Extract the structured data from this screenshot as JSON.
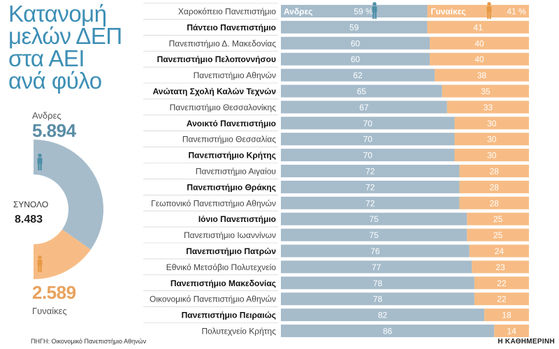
{
  "title_lines": [
    "Κατανομή",
    "μελών ΔΕΠ",
    "στα ΑΕΙ",
    "ανά φύλο"
  ],
  "summary": {
    "men_label": "Ανδρες",
    "men_total": "5.894",
    "total_label": "ΣΥΝΟΛΟ",
    "total_value": "8.483",
    "women_total": "2.589",
    "women_label": "Γυναίκες"
  },
  "source": "ΠΗΓΗ: Οικονομικό Πανεπιστήμιο Αθηνών",
  "brand": "Η ΚΑΘΗΜΕΡΙΝΗ",
  "colors": {
    "men": "#a6bccb",
    "women": "#f7bc85",
    "title": "#3d8fb5",
    "men_icon": "#4d8fa7",
    "women_icon": "#e79a45"
  },
  "chart_data": {
    "type": "bar",
    "orientation": "horizontal",
    "stacked": true,
    "unit": "%",
    "series_header": {
      "men": "Ανδρες",
      "women": "Γυναίκες"
    },
    "categories": [
      "Χαροκόπειο Πανεπιστήμιο",
      "Πάντειο Πανεπιστήμιο",
      "Πανεπιστήμιο Δ. Μακεδονίας",
      "Πανεπιστήμιο Πελοποννήσου",
      "Πανεπιστήμιο Αθηνών",
      "Ανώτατη Σχολή Καλών Τεχνών",
      "Πανεπιστήμιο Θεσσαλονίκης",
      "Ανοικτό Πανεπιστήμιο",
      "Πανεπιστήμιο Θεσσαλίας",
      "Πανεπιστήμιο Κρήτης",
      "Πανεπιστήμιο Αιγαίου",
      "Πανεπιστήμιο Θράκης",
      "Γεωπονικό Πανεπιστήμιο Αθηνών",
      "Ιόνιο Πανεπιστήμιο",
      "Πανεπιστήμιο Ιωαννίνων",
      "Πανεπιστήμιο Πατρών",
      "Εθνικό Μετσόβιο Πολυτεχνείο",
      "Πανεπιστήμιο Μακεδονίας",
      "Οικονομικό Πανεπιστήμιο Αθηνών",
      "Πανεπιστήμιο Πειραιώς",
      "Πολυτεχνείο Κρήτης"
    ],
    "bold": [
      false,
      true,
      false,
      true,
      false,
      true,
      false,
      true,
      false,
      true,
      false,
      true,
      false,
      true,
      false,
      true,
      false,
      true,
      false,
      true,
      false
    ],
    "series": [
      {
        "name": "Ανδρες",
        "values": [
          59,
          59,
          60,
          60,
          62,
          65,
          67,
          70,
          70,
          70,
          72,
          72,
          72,
          75,
          75,
          76,
          77,
          78,
          78,
          82,
          86
        ]
      },
      {
        "name": "Γυναίκες",
        "values": [
          41,
          41,
          40,
          40,
          38,
          35,
          33,
          30,
          30,
          30,
          28,
          28,
          28,
          25,
          25,
          24,
          23,
          22,
          22,
          18,
          14
        ]
      }
    ],
    "donut": {
      "men": 5894,
      "women": 2589
    }
  }
}
